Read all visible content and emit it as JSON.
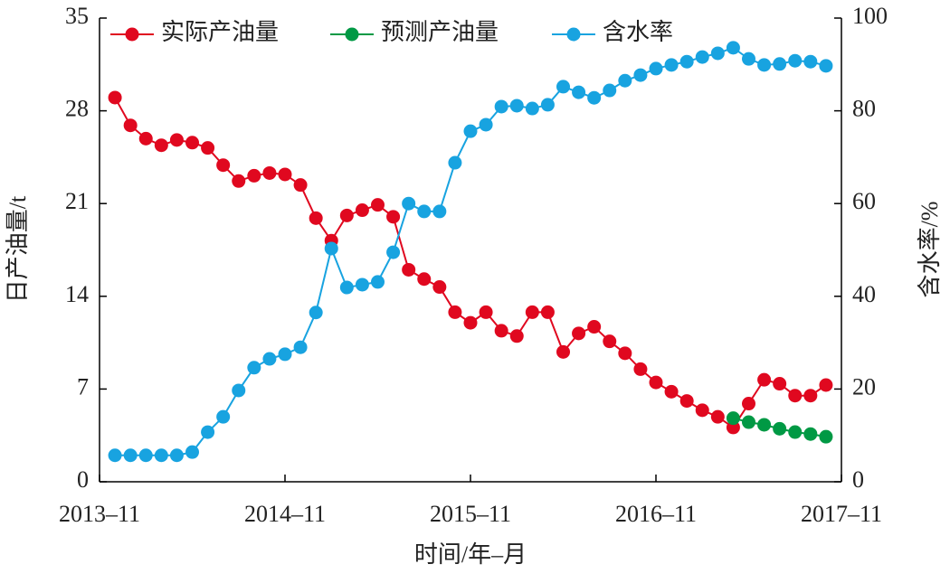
{
  "chart_data": {
    "type": "line",
    "x_label": "时间/年–月",
    "y_label": "日产油量/t",
    "y2_label": "含水率/%",
    "x": [
      "2013-12",
      "2014-01",
      "2014-02",
      "2014-03",
      "2014-04",
      "2014-05",
      "2014-06",
      "2014-07",
      "2014-08",
      "2014-09",
      "2014-10",
      "2014-11",
      "2014-12",
      "2015-01",
      "2015-02",
      "2015-03",
      "2015-04",
      "2015-05",
      "2015-06",
      "2015-07",
      "2015-08",
      "2015-09",
      "2015-10",
      "2015-11",
      "2015-12",
      "2016-01",
      "2016-02",
      "2016-03",
      "2016-04",
      "2016-05",
      "2016-06",
      "2016-07",
      "2016-08",
      "2016-09",
      "2016-10",
      "2016-11",
      "2016-12",
      "2017-01",
      "2017-02",
      "2017-03",
      "2017-04",
      "2017-05",
      "2017-06",
      "2017-07",
      "2017-08",
      "2017-09",
      "2017-10"
    ],
    "xlim": [
      "2013-11",
      "2017-11"
    ],
    "xticks": [
      {
        "value": "2013-11",
        "label": "2013–11"
      },
      {
        "value": "2014-11",
        "label": "2014–11"
      },
      {
        "value": "2015-11",
        "label": "2015–11"
      },
      {
        "value": "2016-11",
        "label": "2016–11"
      },
      {
        "value": "2017-11",
        "label": "2017–11"
      }
    ],
    "ylim": [
      0,
      35
    ],
    "yticks": [
      0,
      7,
      14,
      21,
      28,
      35
    ],
    "y2lim": [
      0,
      100
    ],
    "y2ticks": [
      0,
      20,
      40,
      60,
      80,
      100
    ],
    "legend": "top-left",
    "series": [
      {
        "name": "实际产油量",
        "color": "#e0081f",
        "values": [
          29.0,
          26.9,
          25.9,
          25.4,
          25.8,
          25.6,
          25.2,
          23.9,
          22.7,
          23.1,
          23.3,
          23.2,
          22.4,
          19.9,
          18.2,
          20.1,
          20.5,
          20.9,
          20.0,
          16.0,
          15.3,
          14.7,
          12.8,
          12.0,
          12.8,
          11.4,
          11.0,
          12.8,
          12.8,
          9.8,
          11.2,
          11.7,
          10.6,
          9.7,
          8.5,
          7.5,
          6.8,
          6.1,
          5.4,
          4.9,
          4.1,
          5.9,
          7.7,
          7.4,
          6.5,
          6.5,
          7.3
        ]
      },
      {
        "name": "预测产油量",
        "color": "#009944",
        "values": [
          null,
          null,
          null,
          null,
          null,
          null,
          null,
          null,
          null,
          null,
          null,
          null,
          null,
          null,
          null,
          null,
          null,
          null,
          null,
          null,
          null,
          null,
          null,
          null,
          null,
          null,
          null,
          null,
          null,
          null,
          null,
          null,
          null,
          null,
          null,
          null,
          null,
          null,
          null,
          null,
          4.8,
          4.5,
          4.3,
          4.0,
          3.75,
          3.6,
          3.4
        ]
      },
      {
        "name": "含水率",
        "color": "#18a3e0",
        "axis": "y2",
        "values": [
          5.7,
          5.7,
          5.7,
          5.7,
          5.7,
          6.4,
          10.7,
          14.0,
          19.7,
          24.6,
          26.5,
          27.5,
          29.0,
          36.5,
          50.3,
          41.9,
          42.5,
          43.1,
          49.5,
          60.0,
          58.3,
          58.3,
          68.8,
          75.6,
          77.0,
          80.9,
          81.1,
          80.5,
          81.3,
          85.2,
          84.0,
          82.8,
          84.4,
          86.5,
          87.7,
          89.1,
          89.9,
          90.6,
          91.6,
          92.4,
          93.6,
          91.2,
          89.9,
          90.1,
          90.8,
          90.6,
          89.7
        ]
      }
    ]
  }
}
